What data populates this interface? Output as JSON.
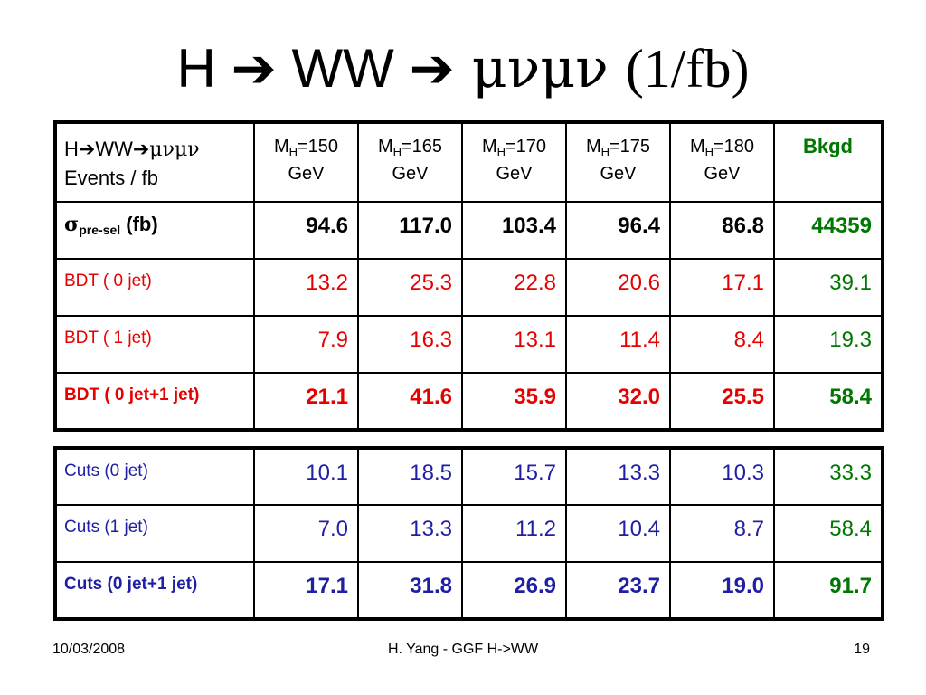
{
  "slide": {
    "title": {
      "lead": "H ",
      "arrow1": "➔",
      "mid": " WW ",
      "arrow2": "➔",
      "greek": " μνμν ",
      "paren": "(1/fb)"
    },
    "footer": {
      "date": "10/03/2008",
      "center": "H. Yang - GGF H->WW",
      "page": "19"
    }
  },
  "table1": {
    "header": {
      "line1_a": "H",
      "line1_arrow1": "➔",
      "line1_b": "WW",
      "line1_arrow2": "➔",
      "line1_greek": "μνμν",
      "line2": "Events / fb",
      "masses": [
        {
          "m": "M",
          "sub": "H",
          "val": "=150",
          "unit": "GeV"
        },
        {
          "m": "M",
          "sub": "H",
          "val": "=165",
          "unit": "GeV"
        },
        {
          "m": "M",
          "sub": "H",
          "val": "=170",
          "unit": "GeV"
        },
        {
          "m": "M",
          "sub": "H",
          "val": "=175",
          "unit": "GeV"
        },
        {
          "m": "M",
          "sub": "H",
          "val": "=180",
          "unit": "GeV"
        }
      ],
      "bkgd": "Bkgd"
    },
    "sigma_row": {
      "sym": "σ",
      "sub": "pre-sel",
      "unit": " (fb)",
      "values": [
        "94.6",
        "117.0",
        "103.4",
        "96.4",
        "86.8",
        "44359"
      ]
    },
    "rows": [
      {
        "label": "BDT ( 0 jet)",
        "values": [
          "13.2",
          "25.3",
          "22.8",
          "20.6",
          "17.1",
          "39.1"
        ]
      },
      {
        "label": "BDT ( 1 jet)",
        "values": [
          "7.9",
          "16.3",
          "13.1",
          "11.4",
          "8.4",
          "19.3"
        ]
      },
      {
        "label": "BDT ( 0 jet+1 jet)",
        "values": [
          "21.1",
          "41.6",
          "35.9",
          "32.0",
          "25.5",
          "58.4"
        ]
      }
    ]
  },
  "table2": {
    "rows": [
      {
        "label": "Cuts (0 jet)",
        "values": [
          "10.1",
          "18.5",
          "15.7",
          "13.3",
          "10.3",
          "33.3"
        ]
      },
      {
        "label": "Cuts (1 jet)",
        "values": [
          "7.0",
          "13.3",
          "11.2",
          "10.4",
          "8.7",
          "58.4"
        ]
      },
      {
        "label": "Cuts (0 jet+1 jet)",
        "values": [
          "17.1",
          "31.8",
          "26.9",
          "23.7",
          "19.0",
          "91.7"
        ]
      }
    ]
  },
  "colors": {
    "red": "#e60000",
    "green": "#007700",
    "blue": "#1f1fa3"
  }
}
